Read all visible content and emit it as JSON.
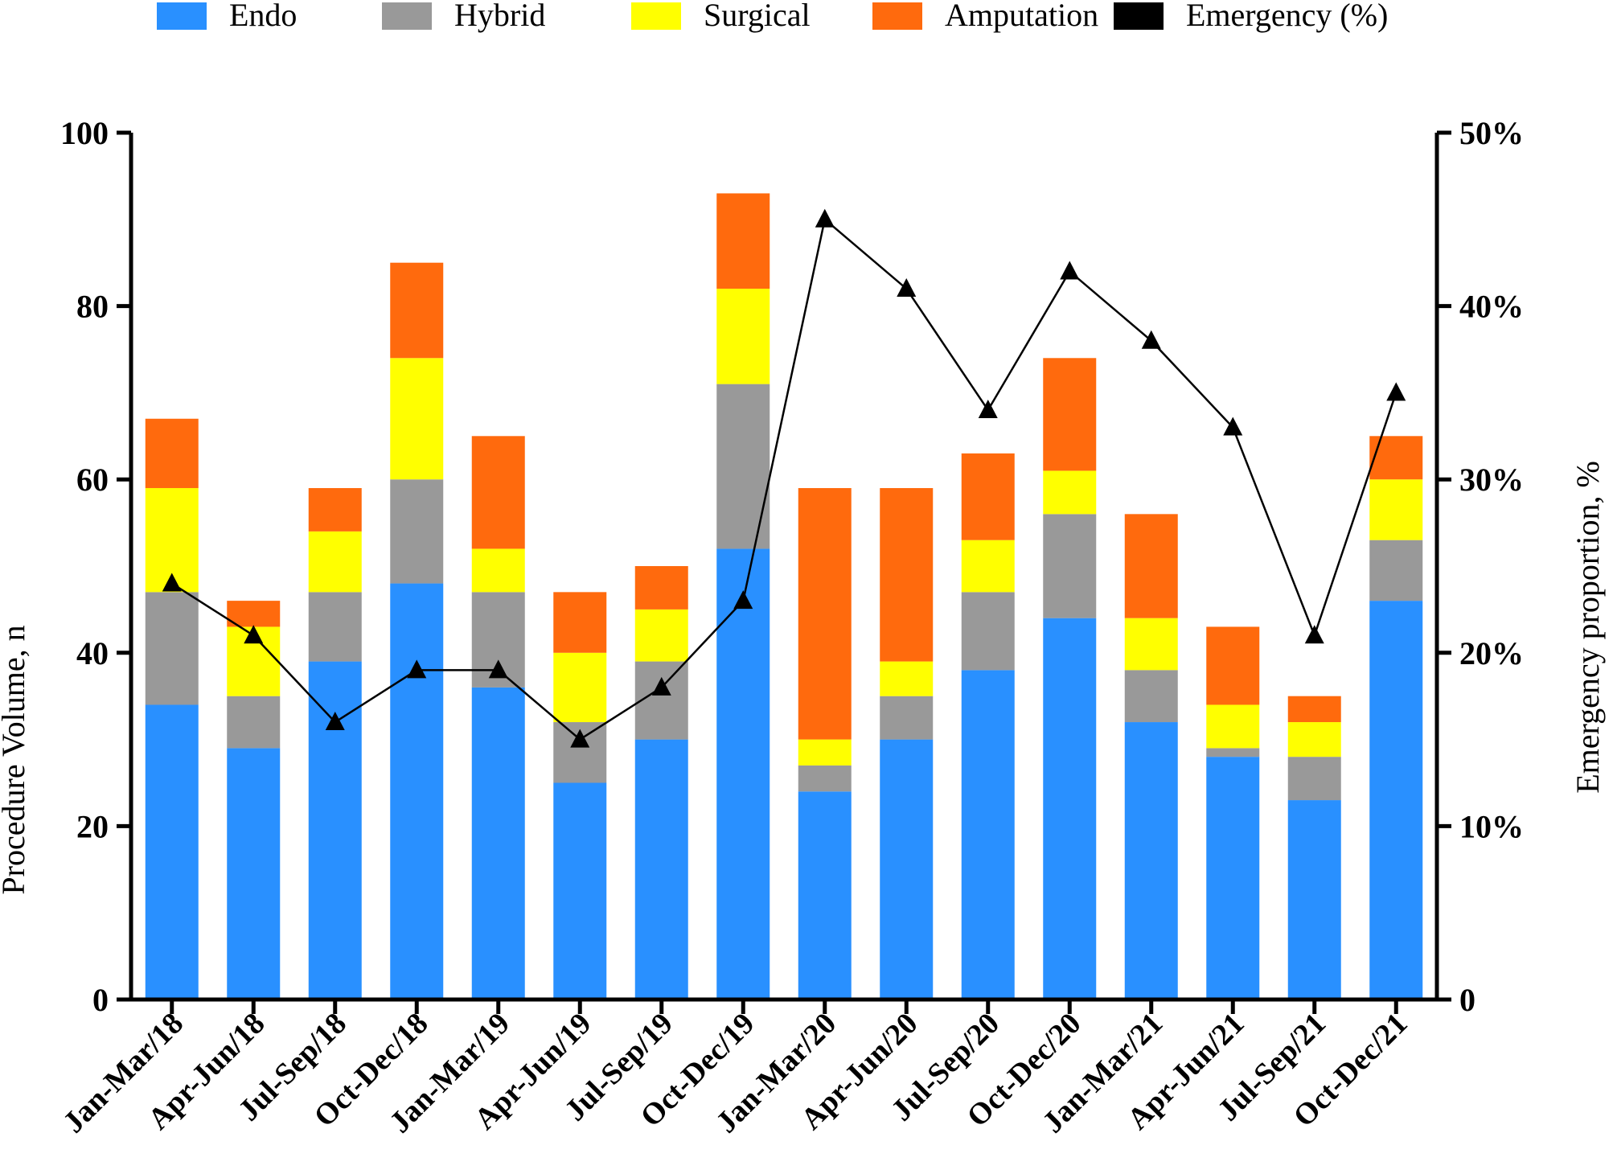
{
  "chart_data": {
    "type": "bar",
    "stacked": true,
    "categories": [
      "Jan-Mar/18",
      "Apr-Jun/18",
      "Jul-Sep/18",
      "Oct-Dec/18",
      "Jan-Mar/19",
      "Apr-Jun/19",
      "Jul-Sep/19",
      "Oct-Dec/19",
      "Jan-Mar/20",
      "Apr-Jun/20",
      "Jul-Sep/20",
      "Oct-Dec/20",
      "Jan-Mar/21",
      "Apr-Jun/21",
      "Jul-Sep/21",
      "Oct-Dec/21"
    ],
    "series": [
      {
        "name": "Endo",
        "color": "#2990FF",
        "values": [
          34,
          29,
          39,
          48,
          36,
          25,
          30,
          52,
          24,
          30,
          38,
          44,
          32,
          28,
          23,
          46
        ]
      },
      {
        "name": "Hybrid",
        "color": "#999999",
        "values": [
          13,
          6,
          8,
          12,
          11,
          7,
          9,
          19,
          3,
          5,
          9,
          12,
          6,
          1,
          5,
          7
        ]
      },
      {
        "name": "Surgical",
        "color": "#FFFF00",
        "values": [
          12,
          8,
          7,
          14,
          5,
          8,
          6,
          11,
          3,
          4,
          6,
          5,
          6,
          5,
          4,
          7
        ]
      },
      {
        "name": "Amputation",
        "color": "#FF6A0D",
        "values": [
          8,
          3,
          5,
          11,
          13,
          7,
          5,
          11,
          29,
          20,
          10,
          13,
          12,
          9,
          3,
          5
        ]
      }
    ],
    "line_series": {
      "name": "Emergency (%)",
      "color": "#000000",
      "marker": "triangle",
      "axis": "right",
      "values": [
        24,
        21,
        16,
        19,
        19,
        15,
        18,
        23,
        45,
        41,
        34,
        42,
        38,
        33,
        21,
        35
      ]
    },
    "ylabel": "Procedure Volume, n",
    "y2label": "Emergency proportion,  %",
    "ylim": [
      0,
      100
    ],
    "y2lim": [
      0,
      50
    ],
    "yticks": [
      "0",
      "20",
      "40",
      "60",
      "80",
      "100"
    ],
    "y2ticks": [
      "0",
      "10%",
      "20%",
      "30%",
      "40%",
      "50%"
    ],
    "legend_position": "top",
    "legend": [
      "Endo",
      "Hybrid",
      "Surgical",
      "Amputation",
      "Emergency (%)"
    ]
  }
}
